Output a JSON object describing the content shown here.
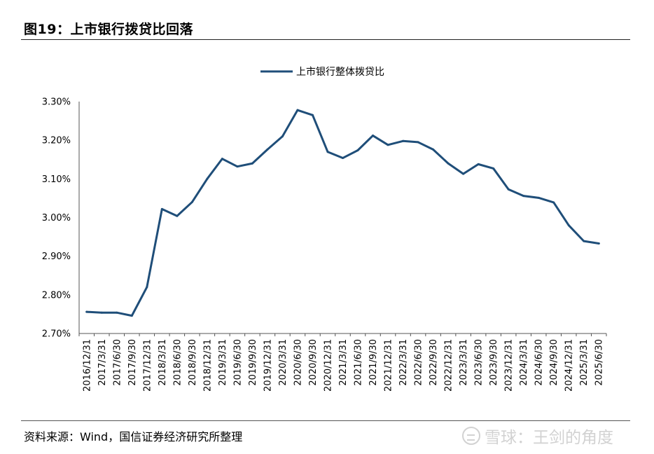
{
  "figure": {
    "title": "图19：上市银行拨贷比回落",
    "source": "资料来源：Wind，国信证券经济研究所整理",
    "watermark": "雪球：王剑的角度"
  },
  "chart_data": {
    "type": "line",
    "title": "",
    "xlabel": "",
    "ylabel": "",
    "legend_position": "top-center",
    "grid": false,
    "ylim": [
      2.7,
      3.3
    ],
    "y_ticks": [
      "3.30%",
      "3.20%",
      "3.10%",
      "3.00%",
      "2.90%",
      "2.80%",
      "2.70%"
    ],
    "y_tick_values": [
      3.3,
      3.2,
      3.1,
      3.0,
      2.9,
      2.8,
      2.7
    ],
    "color": "#1f4e79",
    "categories": [
      "2016/12/31",
      "2017/3/31",
      "2017/6/30",
      "2017/9/30",
      "2017/12/31",
      "2018/3/31",
      "2018/6/30",
      "2018/9/30",
      "2018/12/31",
      "2019/3/31",
      "2019/6/30",
      "2019/9/30",
      "2019/12/31",
      "2020/3/31",
      "2020/6/30",
      "2020/9/30",
      "2020/12/31",
      "2021/3/31",
      "2021/6/30",
      "2021/9/30",
      "2021/12/31",
      "2022/3/31",
      "2022/6/30",
      "2022/9/30",
      "2022/12/31",
      "2023/3/31",
      "2023/6/30",
      "2023/9/30",
      "2023/12/31",
      "2024/3/31",
      "2024/6/30",
      "2024/9/30",
      "2024/12/31",
      "2025/3/31",
      "2025/6/30"
    ],
    "series": [
      {
        "name": "上市银行整体拨贷比",
        "values": [
          2.756,
          2.754,
          2.754,
          2.746,
          2.82,
          3.022,
          3.004,
          3.04,
          3.1,
          3.152,
          3.132,
          3.14,
          3.176,
          3.21,
          3.278,
          3.265,
          3.17,
          3.154,
          3.174,
          3.212,
          3.188,
          3.198,
          3.195,
          3.176,
          3.14,
          3.113,
          3.138,
          3.127,
          3.073,
          3.056,
          3.051,
          3.039,
          2.98,
          2.939,
          2.933
        ]
      }
    ]
  }
}
